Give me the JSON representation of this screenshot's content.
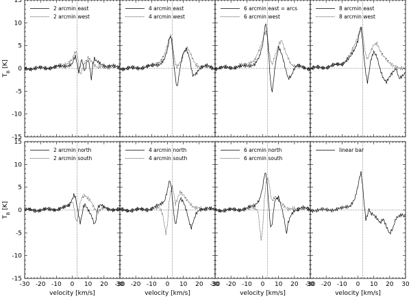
{
  "chart_data": [
    {
      "type": "line",
      "panel": "top-1",
      "xlabel": "",
      "ylabel": "T_B [K]",
      "xlim": [
        -30,
        30
      ],
      "ylim": [
        -15,
        15
      ],
      "series": [
        {
          "name": "2 arcmin east",
          "style": "solid",
          "x": [
            -30,
            -20,
            -10,
            -5,
            0,
            1,
            2,
            3,
            4,
            5,
            6,
            7,
            8,
            9,
            10,
            11,
            12,
            13,
            14,
            15,
            18,
            20,
            22,
            25,
            28,
            30
          ],
          "y": [
            0,
            0,
            0.3,
            0.5,
            1.0,
            2.0,
            2.5,
            1.0,
            -1.0,
            0.5,
            2.0,
            0.5,
            -0.5,
            1.5,
            2.0,
            0.5,
            -2.5,
            1.0,
            2.0,
            1.5,
            1.0,
            0.8,
            0.5,
            0.5,
            0.3,
            0.2
          ]
        },
        {
          "name": "2 arcmin west",
          "style": "dotted",
          "x": [
            -30,
            -20,
            -10,
            -5,
            0,
            1,
            2,
            3,
            4,
            5,
            6,
            8,
            10,
            12,
            14,
            16,
            18,
            20,
            22,
            25,
            28,
            30
          ],
          "y": [
            0,
            0.1,
            0.3,
            0.8,
            2.0,
            3.0,
            3.5,
            3.0,
            1.0,
            -1.5,
            -0.5,
            1.5,
            2.5,
            1.5,
            0.5,
            0,
            0.5,
            0.5,
            0.3,
            0.2,
            0.1,
            0
          ]
        }
      ]
    },
    {
      "type": "line",
      "panel": "top-2",
      "xlabel": "",
      "ylabel": "",
      "xlim": [
        -30,
        30
      ],
      "ylim": [
        -15,
        15
      ],
      "series": [
        {
          "name": "4 arcmin east",
          "style": "solid",
          "x": [
            -30,
            -20,
            -10,
            -5,
            -2,
            0,
            1,
            2,
            3,
            4,
            5,
            6,
            7,
            8,
            10,
            12,
            14,
            15,
            16,
            18,
            20,
            22,
            25,
            28,
            30
          ],
          "y": [
            0,
            0,
            0.5,
            1.0,
            2.0,
            4.0,
            6.0,
            7.0,
            5.0,
            1.0,
            -2.0,
            -4.0,
            -2.0,
            0.5,
            3.5,
            4.0,
            2.0,
            0,
            -1.5,
            -1.0,
            0,
            0.3,
            0.5,
            0.2,
            0
          ]
        },
        {
          "name": "4 arcmin west",
          "style": "dotted",
          "x": [
            -30,
            -20,
            -10,
            -5,
            -2,
            0,
            1,
            2,
            3,
            4,
            5,
            6,
            8,
            10,
            12,
            14,
            16,
            18,
            20,
            22,
            25,
            28,
            30
          ],
          "y": [
            0,
            0.2,
            0.5,
            1.5,
            3.0,
            5.0,
            6.5,
            7.0,
            6.0,
            3.0,
            1.0,
            0.5,
            1.5,
            3.0,
            4.5,
            3.5,
            2.0,
            1.0,
            0.5,
            0.3,
            0.2,
            0.1,
            0
          ]
        }
      ]
    },
    {
      "type": "line",
      "panel": "top-3",
      "xlabel": "",
      "ylabel": "",
      "xlim": [
        -30,
        30
      ],
      "ylim": [
        -15,
        15
      ],
      "series": [
        {
          "name": "6 arcmin east = arcs",
          "style": "solid",
          "x": [
            -30,
            -20,
            -10,
            -5,
            -2,
            0,
            1,
            2,
            3,
            4,
            5,
            6,
            7,
            8,
            10,
            12,
            14,
            16,
            18,
            20,
            22,
            25,
            28,
            30
          ],
          "y": [
            0,
            0.2,
            0.5,
            1.0,
            2.5,
            5.0,
            8.0,
            10.0,
            7.0,
            2.0,
            -3.0,
            -5.0,
            -2.0,
            1.0,
            4.5,
            3.0,
            0.5,
            -2.0,
            -1.5,
            0,
            0.5,
            0.3,
            0.1,
            0
          ]
        },
        {
          "name": "6 arcmin west",
          "style": "dotted",
          "x": [
            -30,
            -20,
            -10,
            -5,
            -2,
            0,
            1,
            2,
            3,
            4,
            5,
            6,
            8,
            10,
            12,
            14,
            16,
            18,
            20,
            22,
            25,
            28,
            30
          ],
          "y": [
            0,
            0.3,
            0.8,
            2.0,
            4.0,
            6.0,
            7.5,
            8.0,
            7.0,
            4.0,
            2.0,
            1.0,
            3.0,
            5.0,
            6.0,
            4.0,
            2.5,
            1.0,
            0.5,
            0.3,
            0.2,
            0.1,
            0
          ]
        }
      ]
    },
    {
      "type": "line",
      "panel": "top-4",
      "xlabel": "",
      "ylabel": "",
      "xlim": [
        -30,
        30
      ],
      "ylim": [
        -15,
        15
      ],
      "series": [
        {
          "name": "8 arcmin east",
          "style": "solid",
          "x": [
            -30,
            -20,
            -10,
            -5,
            -2,
            0,
            1,
            2,
            3,
            4,
            5,
            6,
            7,
            8,
            10,
            12,
            14,
            16,
            18,
            20,
            22,
            24,
            26,
            28,
            30
          ],
          "y": [
            0,
            0.3,
            1.0,
            2.5,
            4.0,
            6.0,
            8.0,
            9.0,
            6.0,
            2.0,
            -1.0,
            -3.0,
            -1.0,
            1.5,
            3.5,
            2.5,
            0,
            -2.0,
            -3.0,
            -2.0,
            -1.0,
            0,
            -2.0,
            -1.5,
            -1.0
          ]
        },
        {
          "name": "8 arcmin west",
          "style": "dotted",
          "x": [
            -30,
            -20,
            -10,
            -5,
            -2,
            0,
            1,
            2,
            3,
            4,
            5,
            6,
            8,
            10,
            12,
            14,
            16,
            18,
            20,
            22,
            25,
            28,
            30
          ],
          "y": [
            0,
            0.3,
            1.0,
            3.0,
            5.0,
            7.0,
            8.5,
            9.5,
            8.0,
            5.0,
            3.0,
            2.0,
            3.5,
            5.0,
            5.5,
            4.0,
            3.0,
            2.0,
            1.0,
            0.5,
            0.3,
            0.2,
            0
          ]
        }
      ]
    },
    {
      "type": "line",
      "panel": "bottom-1",
      "xlabel": "velocity [km/s]",
      "ylabel": "T_B [K]",
      "xlim": [
        -30,
        30
      ],
      "ylim": [
        -15,
        15
      ],
      "series": [
        {
          "name": "2 arcmin north",
          "style": "solid",
          "x": [
            -30,
            -20,
            -10,
            -5,
            -2,
            0,
            1,
            2,
            3,
            4,
            5,
            6,
            7,
            8,
            10,
            12,
            14,
            15,
            16,
            18,
            20,
            22,
            25,
            28,
            30
          ],
          "y": [
            0,
            0,
            0.2,
            0.5,
            1.0,
            2.5,
            3.5,
            3.0,
            1.0,
            -1.0,
            -3.0,
            -1.5,
            0.5,
            1.0,
            0,
            -1.0,
            -3.0,
            -2.0,
            0.5,
            1.0,
            0.5,
            0.3,
            0.2,
            0.1,
            0
          ]
        },
        {
          "name": "2 arcmin south",
          "style": "dotted",
          "x": [
            -30,
            -20,
            -10,
            -5,
            -2,
            0,
            1,
            2,
            3,
            4,
            5,
            6,
            8,
            10,
            12,
            14,
            16,
            18,
            20,
            22,
            25,
            28,
            30
          ],
          "y": [
            0,
            0,
            0.2,
            0.5,
            1.0,
            2.0,
            1.0,
            -1.5,
            -2.5,
            -0.5,
            1.5,
            2.5,
            3.0,
            2.5,
            2.0,
            0.5,
            -0.5,
            0,
            0.5,
            0.3,
            0.2,
            0.1,
            0
          ]
        }
      ]
    },
    {
      "type": "line",
      "panel": "bottom-2",
      "xlabel": "velocity [km/s]",
      "ylabel": "",
      "xlim": [
        -30,
        30
      ],
      "ylim": [
        -15,
        15
      ],
      "series": [
        {
          "name": "4 arcmin north",
          "style": "solid",
          "x": [
            -30,
            -20,
            -10,
            -5,
            -2,
            0,
            1,
            2,
            3,
            4,
            5,
            6,
            7,
            8,
            10,
            12,
            14,
            15,
            16,
            18,
            20,
            22,
            25,
            28,
            30
          ],
          "y": [
            0,
            0,
            0.3,
            1.0,
            2.0,
            4.5,
            6.5,
            6.0,
            3.0,
            -1.0,
            -3.5,
            -2.0,
            1.0,
            2.5,
            2.0,
            0,
            -3.0,
            -4.0,
            -3.0,
            -1.0,
            0,
            0.3,
            0.5,
            0.2,
            0
          ]
        },
        {
          "name": "4 arcmin south",
          "style": "dotted",
          "x": [
            -30,
            -20,
            -10,
            -5,
            -3,
            -1,
            0,
            1,
            2,
            3,
            4,
            5,
            6,
            8,
            10,
            12,
            14,
            16,
            18,
            20,
            22,
            25,
            28,
            30
          ],
          "y": [
            0,
            0,
            0.2,
            0.5,
            -1.0,
            -5.0,
            -3.0,
            2.0,
            4.0,
            5.0,
            3.5,
            1.0,
            2.0,
            4.0,
            3.5,
            2.5,
            1.5,
            0.5,
            0.3,
            0.5,
            0.3,
            0.2,
            0.1,
            0
          ]
        }
      ]
    },
    {
      "type": "line",
      "panel": "bottom-3",
      "xlabel": "velocity [km/s]",
      "ylabel": "",
      "xlim": [
        -30,
        30
      ],
      "ylim": [
        -15,
        15
      ],
      "series": [
        {
          "name": "6 arcmin north",
          "style": "solid",
          "x": [
            -30,
            -20,
            -10,
            -5,
            -2,
            0,
            1,
            2,
            3,
            4,
            5,
            6,
            7,
            8,
            10,
            12,
            14,
            15,
            16,
            18,
            20,
            22,
            25,
            28,
            30
          ],
          "y": [
            0,
            0,
            0.3,
            1.0,
            2.5,
            5.0,
            7.5,
            8.0,
            5.0,
            0,
            -4.0,
            -3.0,
            0.5,
            2.5,
            3.0,
            0.5,
            -3.0,
            -5.5,
            -3.0,
            -1.0,
            0,
            0.3,
            0.5,
            0.2,
            0
          ]
        },
        {
          "name": "6 arcmin south",
          "style": "dotted",
          "x": [
            -30,
            -20,
            -10,
            -5,
            -3,
            -1,
            0,
            1,
            2,
            3,
            4,
            5,
            6,
            8,
            10,
            12,
            14,
            16,
            18,
            20,
            22,
            25,
            28,
            30
          ],
          "y": [
            0,
            0,
            0.2,
            0.5,
            0,
            -6.5,
            -4.0,
            2.0,
            5.5,
            7.0,
            6.0,
            3.0,
            2.0,
            3.0,
            2.5,
            1.5,
            0.5,
            0,
            0.3,
            0.5,
            0.3,
            0.2,
            0.1,
            0
          ]
        }
      ]
    },
    {
      "type": "line",
      "panel": "bottom-4",
      "xlabel": "velocity [km/s]",
      "ylabel": "",
      "xlim": [
        -30,
        30
      ],
      "ylim": [
        -15,
        15
      ],
      "series": [
        {
          "name": "linear bar",
          "style": "solid",
          "x": [
            -30,
            -20,
            -10,
            -5,
            -2,
            0,
            1,
            2,
            3,
            4,
            5,
            6,
            7,
            8,
            10,
            12,
            14,
            16,
            18,
            20,
            22,
            24,
            26,
            28,
            30
          ],
          "y": [
            0,
            0,
            0.3,
            1.0,
            2.5,
            5.0,
            7.0,
            8.0,
            5.0,
            1.0,
            -2.0,
            -1.0,
            0.5,
            -0.5,
            -1.0,
            -2.0,
            -3.0,
            -2.0,
            -3.5,
            -5.0,
            -4.0,
            -2.0,
            -1.5,
            -1.0,
            -1.5
          ]
        }
      ]
    }
  ],
  "axis": {
    "ylabel": "T_B [K]",
    "xlabel": "velocity [km/s]",
    "xticks": [
      -30,
      -20,
      -10,
      0,
      10,
      20,
      30
    ],
    "yticks": [
      -15,
      -10,
      -5,
      0,
      5,
      10,
      15
    ],
    "x_ref": 3,
    "y_ref": 0
  }
}
